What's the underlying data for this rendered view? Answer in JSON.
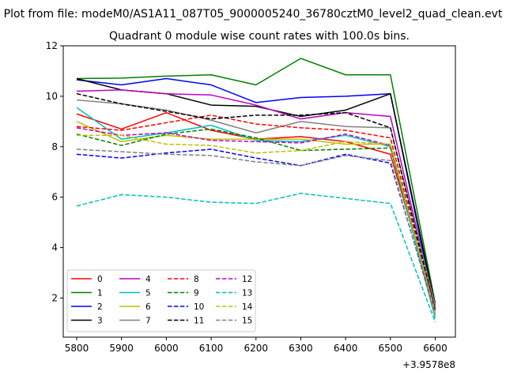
{
  "figure": {
    "suptitle": "Plot from file: modeM0/AS1A11_087T05_9000005240_36780cztM0_level2_quad_clean.evt"
  },
  "chart_data": {
    "type": "line",
    "title": "Quadrant 0 module wise count rates with 100.0s bins.",
    "xlabel": "",
    "ylabel": "",
    "x_offset_label": "+3.9578e8",
    "x": [
      5800,
      5900,
      6000,
      6100,
      6200,
      6300,
      6400,
      6500,
      6600
    ],
    "xlim": [
      5770,
      6645
    ],
    "ylim": [
      0.45,
      12
    ],
    "xticks": [
      "5800",
      "5900",
      "6000",
      "6100",
      "6200",
      "6300",
      "6400",
      "6500",
      "6600"
    ],
    "xtick_values": [
      5800,
      5900,
      6000,
      6100,
      6200,
      6300,
      6400,
      6500,
      6600
    ],
    "yticks": [
      "2",
      "4",
      "6",
      "8",
      "10",
      "12"
    ],
    "ytick_values": [
      2,
      4,
      6,
      8,
      10,
      12
    ],
    "legend": {
      "placement": "lower-left",
      "columns": 4
    },
    "series": [
      {
        "name": "0",
        "color": "#ff0000",
        "dash": "solid",
        "values": [
          9.3,
          8.7,
          9.35,
          8.65,
          8.3,
          8.4,
          8.2,
          7.7,
          1.6
        ]
      },
      {
        "name": "1",
        "color": "#008000",
        "dash": "solid",
        "values": [
          10.7,
          10.72,
          10.8,
          10.85,
          10.45,
          11.5,
          10.85,
          10.85,
          1.8
        ]
      },
      {
        "name": "2",
        "color": "#0000ff",
        "dash": "solid",
        "values": [
          10.65,
          10.45,
          10.7,
          10.45,
          9.75,
          9.95,
          10.0,
          10.1,
          1.5
        ]
      },
      {
        "name": "3",
        "color": "#000000",
        "dash": "solid",
        "values": [
          10.7,
          10.25,
          10.1,
          9.65,
          9.6,
          9.2,
          9.45,
          10.1,
          1.7
        ]
      },
      {
        "name": "4",
        "color": "#bf00bf",
        "dash": "solid",
        "values": [
          10.2,
          10.25,
          10.1,
          10.05,
          9.65,
          9.1,
          9.35,
          9.2,
          1.6
        ]
      },
      {
        "name": "5",
        "color": "#00bfbf",
        "dash": "solid",
        "values": [
          9.55,
          8.3,
          8.55,
          8.85,
          8.25,
          8.2,
          8.45,
          8.0,
          1.2
        ]
      },
      {
        "name": "6",
        "color": "#bfbf00",
        "dash": "solid",
        "values": [
          9.0,
          8.2,
          8.45,
          8.3,
          8.3,
          8.3,
          8.1,
          8.1,
          1.4
        ]
      },
      {
        "name": "7",
        "color": "#808080",
        "dash": "solid",
        "values": [
          9.85,
          9.7,
          9.45,
          9.05,
          8.55,
          9.0,
          8.8,
          8.75,
          1.7
        ]
      },
      {
        "name": "8",
        "color": "#ff0000",
        "dash": "dashed",
        "values": [
          8.8,
          8.65,
          8.95,
          9.25,
          8.9,
          8.75,
          8.65,
          8.35,
          1.5
        ]
      },
      {
        "name": "9",
        "color": "#008000",
        "dash": "dashed",
        "values": [
          8.5,
          8.05,
          8.5,
          8.7,
          8.35,
          7.85,
          7.9,
          7.95,
          1.6
        ]
      },
      {
        "name": "10",
        "color": "#0000ff",
        "dash": "dashed",
        "values": [
          7.7,
          7.55,
          7.75,
          7.9,
          7.55,
          7.25,
          7.7,
          7.35,
          1.4
        ]
      },
      {
        "name": "11",
        "color": "#000000",
        "dash": "dashed",
        "values": [
          10.1,
          9.7,
          9.4,
          9.1,
          9.25,
          9.25,
          9.35,
          8.75,
          1.5
        ]
      },
      {
        "name": "12",
        "color": "#bf00bf",
        "dash": "dashed",
        "values": [
          8.75,
          8.45,
          8.55,
          8.25,
          8.2,
          8.15,
          8.5,
          8.05,
          1.5
        ]
      },
      {
        "name": "13",
        "color": "#00bfbf",
        "dash": "dashed",
        "values": [
          5.65,
          6.1,
          6.0,
          5.8,
          5.75,
          6.15,
          5.95,
          5.75,
          1.05
        ]
      },
      {
        "name": "14",
        "color": "#bfbf00",
        "dash": "dashed",
        "values": [
          8.45,
          8.45,
          8.1,
          8.05,
          7.75,
          7.85,
          8.2,
          8.1,
          1.4
        ]
      },
      {
        "name": "15",
        "color": "#808080",
        "dash": "dashed",
        "values": [
          7.9,
          7.8,
          7.7,
          7.65,
          7.4,
          7.25,
          7.65,
          7.45,
          1.3
        ]
      }
    ]
  }
}
